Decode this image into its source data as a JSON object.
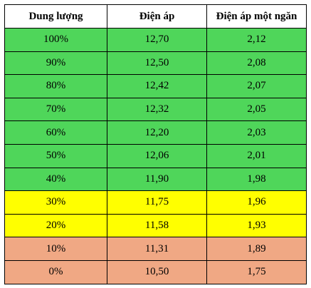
{
  "table": {
    "headers": [
      "Dung lượng",
      "Điện áp",
      "Điện áp một ngăn"
    ],
    "rows": [
      {
        "cells": [
          "100%",
          "12,70",
          "2,12"
        ],
        "status": "green"
      },
      {
        "cells": [
          "90%",
          "12,50",
          "2,08"
        ],
        "status": "green"
      },
      {
        "cells": [
          "80%",
          "12,42",
          "2,07"
        ],
        "status": "green"
      },
      {
        "cells": [
          "70%",
          "12,32",
          "2,05"
        ],
        "status": "green"
      },
      {
        "cells": [
          "60%",
          "12,20",
          "2,03"
        ],
        "status": "green"
      },
      {
        "cells": [
          "50%",
          "12,06",
          "2,01"
        ],
        "status": "green"
      },
      {
        "cells": [
          "40%",
          "11,90",
          "1,98"
        ],
        "status": "green"
      },
      {
        "cells": [
          "30%",
          "11,75",
          "1,96"
        ],
        "status": "yellow"
      },
      {
        "cells": [
          "20%",
          "11,58",
          "1,93"
        ],
        "status": "yellow"
      },
      {
        "cells": [
          "10%",
          "11,31",
          "1,89"
        ],
        "status": "salmon"
      },
      {
        "cells": [
          "0%",
          "10,50",
          "1,75"
        ],
        "status": "salmon"
      }
    ]
  },
  "colors": {
    "green": "#4fd65a",
    "yellow": "#ffff00",
    "salmon": "#f0a884"
  }
}
